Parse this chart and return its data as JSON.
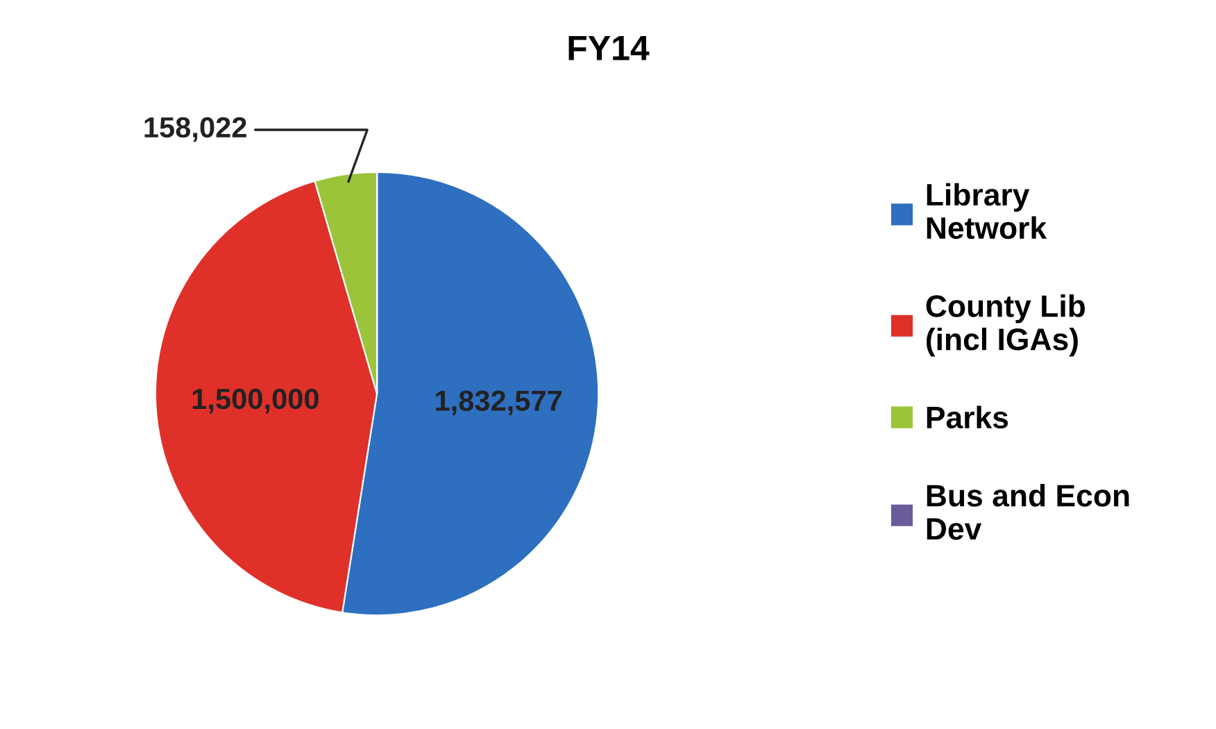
{
  "chart_data": {
    "type": "pie",
    "title": "FY14",
    "categories": [
      "Library\nNetwork",
      "County Lib\n(incl IGAs)",
      "Parks",
      "Bus and Econ\nDev"
    ],
    "values": [
      1832577,
      1500000,
      158022,
      0
    ],
    "colors": [
      "#2e6fc0",
      "#e0302a",
      "#9bc43a",
      "#6b5b9a"
    ],
    "value_labels": [
      "1,832,577",
      "1,500,000",
      "158,022",
      null
    ],
    "legend": "right"
  }
}
